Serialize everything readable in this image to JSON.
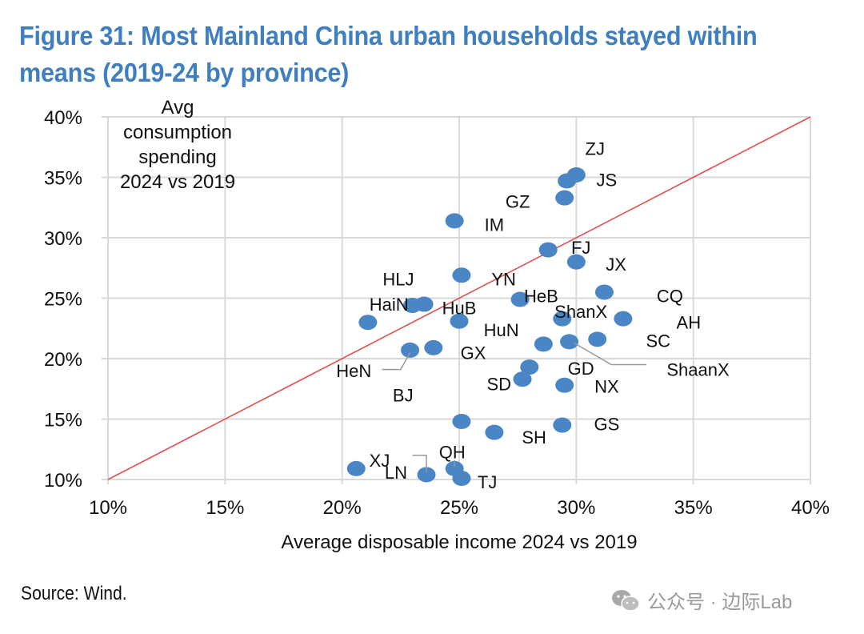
{
  "title": "Figure 31: Most Mainland China urban households stayed within means (2019-24 by province)",
  "source": "Source: Wind.",
  "watermark": {
    "icon": "wechat-icon",
    "text": "公众号 · 边际Lab"
  },
  "colors": {
    "title": "#3f7fbf",
    "point": "#4a86c5",
    "line": "#e05050",
    "grid": "#d9d9d9"
  },
  "chart_data": {
    "type": "scatter",
    "title": "Figure 31: Most Mainland China urban households stayed within means (2019-24 by province)",
    "xlabel": "Average disposable income 2024 vs 2019",
    "ylabel": "Avg consumption spending 2024 vs 2019",
    "ylabel_lines": [
      "Avg",
      "consumption",
      "spending",
      "2024 vs 2019"
    ],
    "xlim": [
      10,
      40
    ],
    "ylim": [
      10,
      40
    ],
    "x_ticks": [
      "10%",
      "15%",
      "20%",
      "25%",
      "30%",
      "35%",
      "40%"
    ],
    "y_ticks": [
      "10%",
      "15%",
      "20%",
      "25%",
      "30%",
      "35%",
      "40%"
    ],
    "grid": true,
    "reference_line": {
      "label": "45-degree line",
      "from": [
        10,
        10
      ],
      "to": [
        40,
        40
      ]
    },
    "points": [
      {
        "label": "ZJ",
        "x": 30.0,
        "y": 35.2
      },
      {
        "label": "JS",
        "x": 29.6,
        "y": 34.7
      },
      {
        "label": "GZ",
        "x": 29.5,
        "y": 33.3
      },
      {
        "label": "IM",
        "x": 24.8,
        "y": 31.4
      },
      {
        "label": "FJ",
        "x": 28.8,
        "y": 29.0
      },
      {
        "label": "JX",
        "x": 30.0,
        "y": 28.0
      },
      {
        "label": "HLJ",
        "x": 25.1,
        "y": 26.9
      },
      {
        "label": "YN",
        "x": 27.6,
        "y": 24.9
      },
      {
        "label": "CQ",
        "x": 31.2,
        "y": 25.5
      },
      {
        "label": "HeB",
        "x": 29.4,
        "y": 23.3
      },
      {
        "label": "ShanX",
        "x": 28.6,
        "y": 21.2
      },
      {
        "label": "AH",
        "x": 32.0,
        "y": 23.3
      },
      {
        "label": "SC",
        "x": 30.9,
        "y": 21.6
      },
      {
        "label": "ShaanX",
        "x": 29.7,
        "y": 21.4
      },
      {
        "label": "HaiN",
        "x": 21.1,
        "y": 23.0
      },
      {
        "label": "HuB",
        "x": 23.0,
        "y": 24.4
      },
      {
        "label": "HuN",
        "x": 25.0,
        "y": 23.1
      },
      {
        "label": "",
        "x": 23.5,
        "y": 24.5
      },
      {
        "label": "HeN",
        "x": 22.9,
        "y": 20.7
      },
      {
        "label": "GX",
        "x": 23.9,
        "y": 20.9
      },
      {
        "label": "GD",
        "x": 28.0,
        "y": 19.3
      },
      {
        "label": "SD",
        "x": 27.7,
        "y": 18.3
      },
      {
        "label": "NX",
        "x": 29.5,
        "y": 17.8
      },
      {
        "label": "BJ",
        "x": 25.1,
        "y": 14.8
      },
      {
        "label": "GS",
        "x": 29.4,
        "y": 14.5
      },
      {
        "label": "SH",
        "x": 26.5,
        "y": 13.9
      },
      {
        "label": "XJ",
        "x": 20.6,
        "y": 10.9
      },
      {
        "label": "LN",
        "x": 23.6,
        "y": 10.4
      },
      {
        "label": "QH",
        "x": 24.8,
        "y": 10.9
      },
      {
        "label": "TJ",
        "x": 25.1,
        "y": 10.1
      }
    ],
    "text_labels": [
      {
        "text": "ZJ",
        "x": 30.8,
        "y": 37.4
      },
      {
        "text": "JS",
        "x": 31.3,
        "y": 34.8
      },
      {
        "text": "GZ",
        "x": 27.5,
        "y": 33.0
      },
      {
        "text": "IM",
        "x": 26.5,
        "y": 31.1
      },
      {
        "text": "FJ",
        "x": 30.2,
        "y": 29.2
      },
      {
        "text": "JX",
        "x": 31.7,
        "y": 27.8
      },
      {
        "text": "HLJ",
        "x": 22.4,
        "y": 26.6
      },
      {
        "text": "YN",
        "x": 26.9,
        "y": 26.6
      },
      {
        "text": "HeB",
        "x": 28.5,
        "y": 25.2
      },
      {
        "text": "CQ",
        "x": 34.0,
        "y": 25.2
      },
      {
        "text": "ShanX",
        "x": 30.2,
        "y": 23.9
      },
      {
        "text": "AH",
        "x": 34.8,
        "y": 23.0
      },
      {
        "text": "SC",
        "x": 33.5,
        "y": 21.5
      },
      {
        "text": "ShaanX",
        "x": 35.2,
        "y": 19.1
      },
      {
        "text": "HaiN",
        "x": 22.0,
        "y": 24.5
      },
      {
        "text": "HuB",
        "x": 25.0,
        "y": 24.2
      },
      {
        "text": "HuN",
        "x": 26.8,
        "y": 22.4
      },
      {
        "text": "GX",
        "x": 25.6,
        "y": 20.5
      },
      {
        "text": "HeN",
        "x": 20.5,
        "y": 19.0
      },
      {
        "text": "BJ",
        "x": 22.6,
        "y": 17.0
      },
      {
        "text": "GD",
        "x": 30.2,
        "y": 19.2
      },
      {
        "text": "SD",
        "x": 26.7,
        "y": 17.9
      },
      {
        "text": "NX",
        "x": 31.3,
        "y": 17.7
      },
      {
        "text": "GS",
        "x": 31.3,
        "y": 14.6
      },
      {
        "text": "SH",
        "x": 28.2,
        "y": 13.5
      },
      {
        "text": "XJ",
        "x": 21.6,
        "y": 11.6
      },
      {
        "text": "LN",
        "x": 22.3,
        "y": 10.6
      },
      {
        "text": "QH",
        "x": 24.7,
        "y": 12.3
      },
      {
        "text": "TJ",
        "x": 26.2,
        "y": 9.8
      }
    ]
  }
}
